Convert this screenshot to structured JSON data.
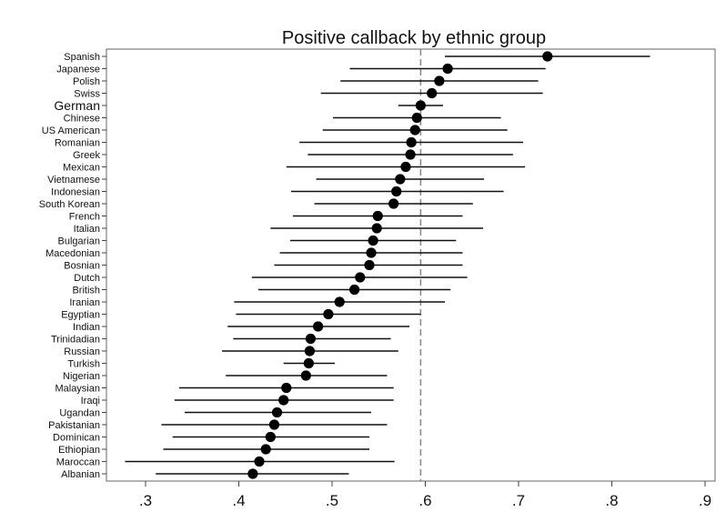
{
  "chart_data": {
    "type": "scatter",
    "title": "Positive callback by ethnic group",
    "xlabel": "",
    "ylabel": "",
    "xlim": [
      0.27,
      0.91
    ],
    "x_ticks": [
      0.3,
      0.4,
      0.5,
      0.6,
      0.7,
      0.8,
      0.9
    ],
    "x_tick_labels": [
      ".3",
      ".4",
      ".5",
      ".6",
      ".7",
      ".8",
      ".9"
    ],
    "reference_line": 0.595,
    "highlight_category": "German",
    "categories": [
      "Spanish",
      "Japanese",
      "Polish",
      "Swiss",
      "German",
      "Chinese",
      "US American",
      "Romanian",
      "Greek",
      "Mexican",
      "Vietnamese",
      "Indonesian",
      "South Korean",
      "French",
      "Italian",
      "Bulgarian",
      "Macedonian",
      "Bosnian",
      "Dutch",
      "British",
      "Iranian",
      "Egyptian",
      "Indian",
      "Trinidadian",
      "Russian",
      "Turkish",
      "Nigerian",
      "Malaysian",
      "Iraqi",
      "Ugandan",
      "Pakistanian",
      "Dominican",
      "Ethiopian",
      "Maroccan",
      "Albanian"
    ],
    "values": [
      0.731,
      0.624,
      0.615,
      0.607,
      0.595,
      0.591,
      0.589,
      0.585,
      0.584,
      0.579,
      0.573,
      0.569,
      0.566,
      0.549,
      0.548,
      0.544,
      0.542,
      0.54,
      0.53,
      0.524,
      0.508,
      0.496,
      0.485,
      0.477,
      0.476,
      0.475,
      0.472,
      0.451,
      0.448,
      0.441,
      0.438,
      0.434,
      0.429,
      0.422,
      0.415
    ],
    "ci_low": [
      0.621,
      0.519,
      0.509,
      0.488,
      0.571,
      0.501,
      0.49,
      0.465,
      0.474,
      0.451,
      0.483,
      0.456,
      0.481,
      0.458,
      0.434,
      0.455,
      0.444,
      0.438,
      0.414,
      0.421,
      0.395,
      0.397,
      0.388,
      0.394,
      0.382,
      0.448,
      0.386,
      0.336,
      0.331,
      0.342,
      0.317,
      0.329,
      0.319,
      0.278,
      0.311
    ],
    "ci_high": [
      0.841,
      0.729,
      0.721,
      0.726,
      0.619,
      0.681,
      0.688,
      0.705,
      0.694,
      0.707,
      0.663,
      0.684,
      0.651,
      0.64,
      0.662,
      0.633,
      0.64,
      0.64,
      0.645,
      0.627,
      0.621,
      0.595,
      0.583,
      0.563,
      0.571,
      0.503,
      0.559,
      0.566,
      0.566,
      0.542,
      0.559,
      0.54,
      0.54,
      0.567,
      0.518
    ]
  }
}
